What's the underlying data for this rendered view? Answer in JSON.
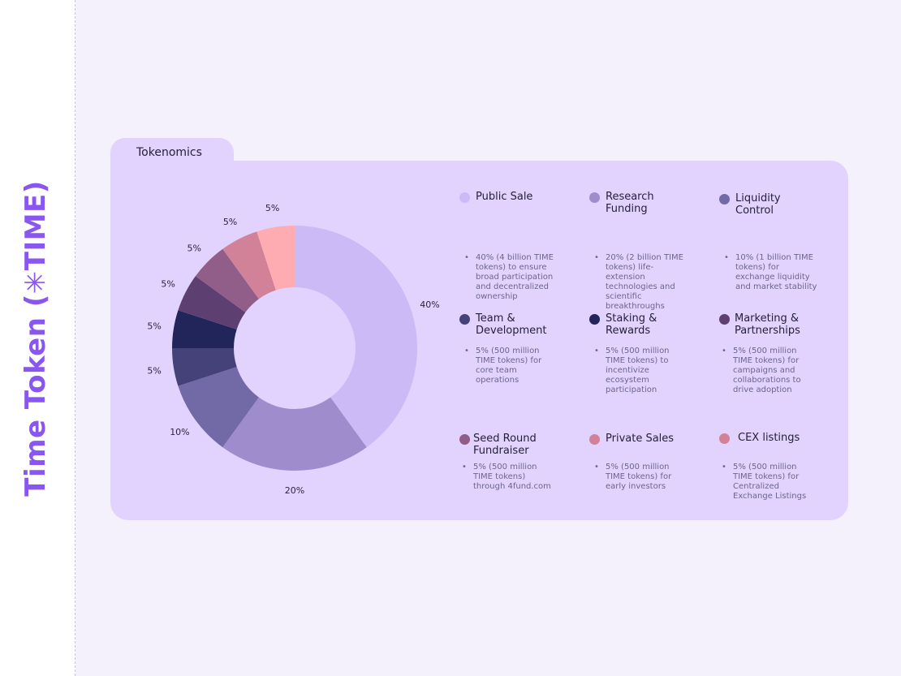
{
  "sidebar": {
    "title": "Time Token (✳TIME)"
  },
  "tab": {
    "label": "Tokenomics"
  },
  "chart_data": {
    "type": "pie",
    "title": "Tokenomics",
    "slices": [
      {
        "name": "Public Sale",
        "value": 40,
        "label": "40%",
        "color": "#cbbaf5"
      },
      {
        "name": "Research Funding",
        "value": 20,
        "label": "20%",
        "color": "#9f8ccc"
      },
      {
        "name": "Liquidity Control",
        "value": 10,
        "label": "10%",
        "color": "#726aa6"
      },
      {
        "name": "Team & Development",
        "value": 5,
        "label": "5%",
        "color": "#45427a"
      },
      {
        "name": "Staking & Rewards",
        "value": 5,
        "label": "5%",
        "color": "#22255a"
      },
      {
        "name": "Marketing & Partnerships",
        "value": 5,
        "label": "5%",
        "color": "#5e3f72"
      },
      {
        "name": "Seed Round Fundraiser",
        "value": 5,
        "label": "5%",
        "color": "#905e88"
      },
      {
        "name": "Private Sales",
        "value": 5,
        "label": "5%",
        "color": "#d18299"
      },
      {
        "name": "CEX listings",
        "value": 5,
        "label": "5%",
        "color": "#ffabb2"
      }
    ]
  },
  "legend": [
    {
      "name": "Public Sale",
      "desc": "40% (4 billion TIME tokens) to ensure broad participation and decentralized ownership",
      "color": "#cbbaf5"
    },
    {
      "name": "Research Funding",
      "desc": "20% (2 billion TIME tokens) life-extension technologies and scientific breakthroughs",
      "color": "#9f8ccc"
    },
    {
      "name": "Liquidity Control",
      "desc": "10% (1 billion TIME tokens) for exchange liquidity and market stability",
      "color": "#726aa6"
    },
    {
      "name": "Team & Development",
      "desc": "5% (500 million TIME tokens) for core team operations",
      "color": "#45427a"
    },
    {
      "name": "Staking & Rewards",
      "desc": "5% (500 million TIME tokens) to incentivize ecosystem participation",
      "color": "#22255a"
    },
    {
      "name": "Marketing & Partnerships",
      "desc": "5% (500 million TIME tokens) for campaigns and collaborations to drive adoption",
      "color": "#5e3f72"
    },
    {
      "name": "Seed Round Fundraiser",
      "desc": "5% (500 million TIME tokens) through 4fund.com",
      "color": "#905e88"
    },
    {
      "name": "Private Sales",
      "desc": "5% (500 million TIME tokens) for early investors",
      "color": "#d18299"
    },
    {
      "name": "CEX listings",
      "desc": "5% (500 million TIME tokens) for Centralized Exchange Listings",
      "color": "#d18299"
    }
  ]
}
